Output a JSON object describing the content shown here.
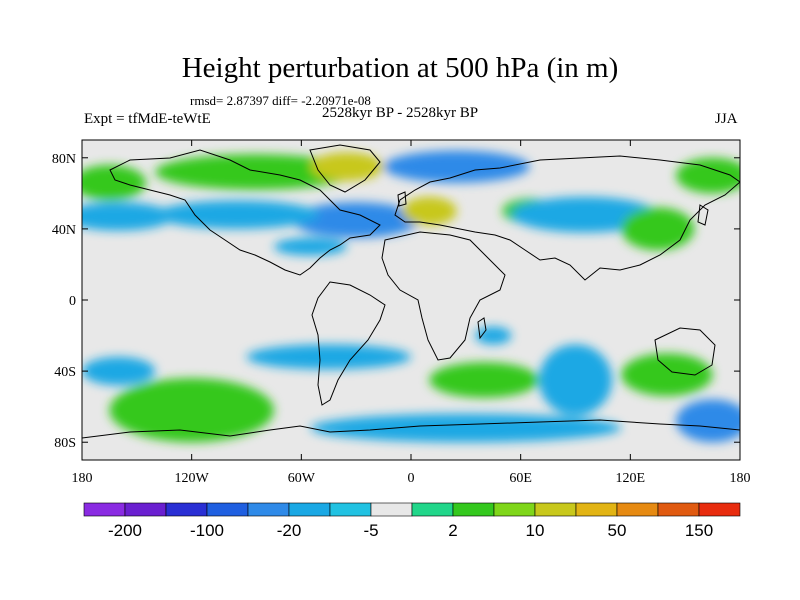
{
  "title": "Height perturbation at 500 hPa (in m)",
  "stats": {
    "rmsd_label": "rmsd=",
    "rmsd": "2.87397",
    "diff_label": "diff=",
    "diff": "-2.20971e-08",
    "line": "rmsd= 2.87397 diff= -2.20971e-08"
  },
  "experiment": "Expt = tfMdE-teWtE",
  "period": "2528kyr BP - 2528kyr BP",
  "season": "JJA",
  "chart_data": {
    "type": "heatmap",
    "projection": "cylindrical-equidistant",
    "variable": "500 hPa geopotential height perturbation",
    "units": "m",
    "lat_range": [
      -90,
      90
    ],
    "lon_range": [
      -180,
      180
    ],
    "lat_tick_labels": [
      "80N",
      "40N",
      "0",
      "40S",
      "80S"
    ],
    "lat_tick_values": [
      80,
      40,
      0,
      -40,
      -80
    ],
    "lon_tick_labels": [
      "180",
      "120W",
      "60W",
      "0",
      "60E",
      "120E",
      "180"
    ],
    "lon_tick_values": [
      -180,
      -120,
      -60,
      0,
      60,
      120,
      180
    ],
    "colorbar": {
      "colors": [
        "#8a2be2",
        "#6a1fd0",
        "#2a2fd4",
        "#1f5fe0",
        "#2f8ae8",
        "#1aa8e4",
        "#21c2e2",
        "#e8e8e8",
        "#21d68a",
        "#34c81e",
        "#7fd61a",
        "#c8c81c",
        "#e2b414",
        "#e68a12",
        "#e05a10",
        "#e82c0e"
      ],
      "label_values": [
        "-200",
        "-100",
        "-20",
        "-5",
        "2",
        "10",
        "50",
        "150"
      ]
    },
    "regions": [
      {
        "name": "arctic-canada-green",
        "lon": -85,
        "lat": 72,
        "lon_half": 55,
        "lat_half": 10,
        "level": 10
      },
      {
        "name": "greenland-green",
        "lon": -35,
        "lat": 75,
        "lon_half": 20,
        "lat_half": 8,
        "level": 50
      },
      {
        "name": "north-pacific-green",
        "lon": -165,
        "lat": 66,
        "lon_half": 20,
        "lat_half": 10,
        "level": 10
      },
      {
        "name": "north-atlantic-blue",
        "lon": -30,
        "lat": 45,
        "lon_half": 35,
        "lat_half": 10,
        "level": -20
      },
      {
        "name": "north-america-blue",
        "lon": -95,
        "lat": 48,
        "lon_half": 45,
        "lat_half": 8,
        "level": -5
      },
      {
        "name": "north-pacific-blue",
        "lon": -160,
        "lat": 47,
        "lon_half": 30,
        "lat_half": 8,
        "level": -5
      },
      {
        "name": "barents-blue",
        "lon": 25,
        "lat": 75,
        "lon_half": 40,
        "lat_half": 9,
        "level": -20
      },
      {
        "name": "europe-yellow",
        "lon": 10,
        "lat": 50,
        "lon_half": 15,
        "lat_half": 8,
        "level": 50
      },
      {
        "name": "caspian-green",
        "lon": 65,
        "lat": 50,
        "lon_half": 15,
        "lat_half": 7,
        "level": 10
      },
      {
        "name": "asia-blue",
        "lon": 95,
        "lat": 48,
        "lon_half": 40,
        "lat_half": 10,
        "level": -5
      },
      {
        "name": "east-asia-green",
        "lon": 135,
        "lat": 40,
        "lon_half": 20,
        "lat_half": 12,
        "level": 10
      },
      {
        "name": "siberia-green",
        "lon": 165,
        "lat": 70,
        "lon_half": 20,
        "lat_half": 10,
        "level": 10
      },
      {
        "name": "mid-atlantic-blue",
        "lon": -55,
        "lat": 30,
        "lon_half": 20,
        "lat_half": 5,
        "level": -5
      },
      {
        "name": "south-pacific-green",
        "lon": -120,
        "lat": -62,
        "lon_half": 45,
        "lat_half": 18,
        "level": 10
      },
      {
        "name": "south-pacific-blue",
        "lon": -160,
        "lat": -40,
        "lon_half": 20,
        "lat_half": 8,
        "level": -5
      },
      {
        "name": "south-america-blue",
        "lon": -45,
        "lat": -32,
        "lon_half": 45,
        "lat_half": 7,
        "level": -5
      },
      {
        "name": "south-atlantic-green",
        "lon": 40,
        "lat": -45,
        "lon_half": 30,
        "lat_half": 10,
        "level": 10
      },
      {
        "name": "southern-ocean-blue",
        "lon": 30,
        "lat": -72,
        "lon_half": 85,
        "lat_half": 8,
        "level": -5
      },
      {
        "name": "indian-ocean-blue",
        "lon": 90,
        "lat": -45,
        "lon_half": 20,
        "lat_half": 20,
        "level": -5
      },
      {
        "name": "australia-green",
        "lon": 140,
        "lat": -42,
        "lon_half": 25,
        "lat_half": 12,
        "level": 10
      },
      {
        "name": "southeast-pacific-blue",
        "lon": 165,
        "lat": -68,
        "lon_half": 20,
        "lat_half": 12,
        "level": -20
      },
      {
        "name": "madagascar-blue",
        "lon": 45,
        "lat": -20,
        "lon_half": 10,
        "lat_half": 5,
        "level": -5
      }
    ]
  }
}
